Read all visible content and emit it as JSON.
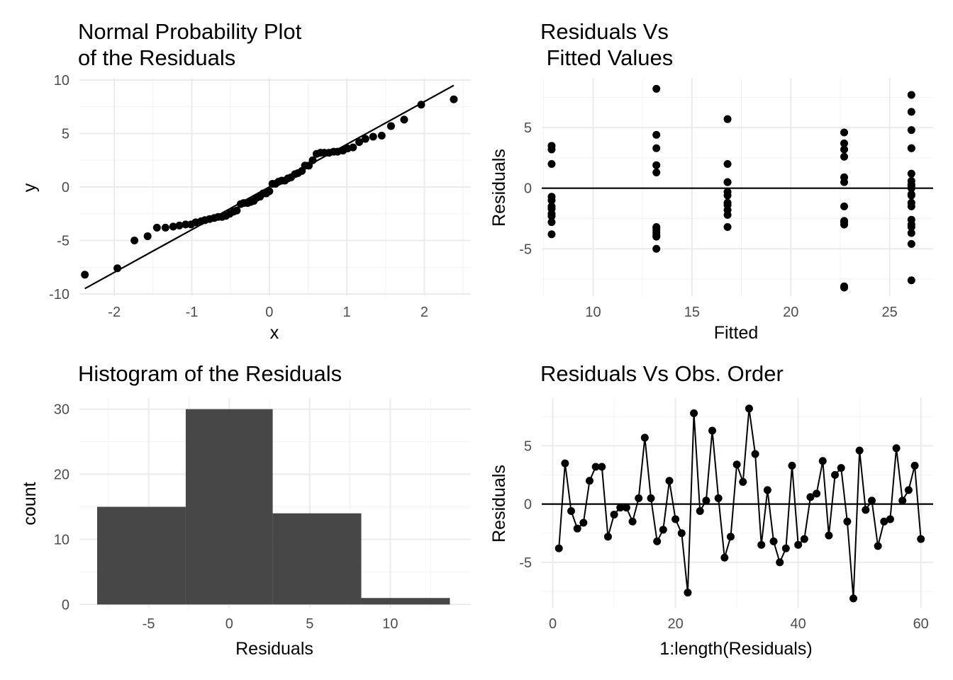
{
  "chart_data": [
    {
      "id": "qq",
      "type": "scatter",
      "title_lines": [
        "Normal Probability Plot",
        "of the Residuals"
      ],
      "xlabel": "x",
      "ylabel": "y",
      "xlim": [
        -2.45,
        2.6
      ],
      "ylim": [
        -10.2,
        10.2
      ],
      "xticks": [
        -2,
        -1,
        0,
        1,
        2
      ],
      "xtick_labels": [
        "-2",
        "-1",
        "0",
        "1",
        "2"
      ],
      "yticks": [
        -10,
        -5,
        0,
        5,
        10
      ],
      "ytick_labels": [
        "-10",
        "-5",
        "0",
        "5",
        "10"
      ],
      "reference_line": {
        "x": [
          -2.38,
          2.38
        ],
        "y": [
          -9.5,
          9.5
        ]
      },
      "x": [
        -2.38,
        -1.96,
        -1.74,
        -1.57,
        -1.45,
        -1.34,
        -1.24,
        -1.16,
        -1.08,
        -1.01,
        -0.95,
        -0.88,
        -0.83,
        -0.77,
        -0.71,
        -0.66,
        -0.61,
        -0.56,
        -0.51,
        -0.46,
        -0.42,
        -0.37,
        -0.33,
        -0.28,
        -0.24,
        -0.2,
        -0.16,
        -0.12,
        -0.08,
        -0.04,
        0.0,
        0.04,
        0.08,
        0.12,
        0.16,
        0.2,
        0.24,
        0.28,
        0.33,
        0.37,
        0.42,
        0.46,
        0.51,
        0.56,
        0.61,
        0.66,
        0.71,
        0.77,
        0.83,
        0.88,
        0.95,
        1.01,
        1.08,
        1.16,
        1.24,
        1.34,
        1.45,
        1.57,
        1.74,
        1.96,
        2.38
      ],
      "y": [
        -8.2,
        -7.6,
        -5.0,
        -4.6,
        -3.8,
        -3.8,
        -3.7,
        -3.6,
        -3.5,
        -3.5,
        -3.3,
        -3.2,
        -3.1,
        -3.0,
        -2.9,
        -2.8,
        -2.8,
        -2.7,
        -2.5,
        -2.3,
        -2.2,
        -1.6,
        -1.5,
        -1.5,
        -1.4,
        -1.3,
        -1.0,
        -0.9,
        -0.6,
        -0.6,
        -0.4,
        0.3,
        0.3,
        0.5,
        0.6,
        0.6,
        0.8,
        0.9,
        1.2,
        1.3,
        1.5,
        2.0,
        2.0,
        2.5,
        3.1,
        3.2,
        3.2,
        3.2,
        3.3,
        3.3,
        3.4,
        3.6,
        3.7,
        4.2,
        4.5,
        4.7,
        4.8,
        5.7,
        6.3,
        7.7,
        8.2
      ]
    },
    {
      "id": "fitted",
      "type": "scatter",
      "title_lines": [
        "Residuals Vs",
        " Fitted Values"
      ],
      "xlabel": "Fitted",
      "ylabel": "Residuals",
      "xlim": [
        7.4,
        27.2
      ],
      "ylim": [
        -8.9,
        9.1
      ],
      "xticks": [
        10,
        15,
        20,
        25
      ],
      "xtick_labels": [
        "10",
        "15",
        "20",
        "25"
      ],
      "yticks": [
        -5,
        0,
        5
      ],
      "ytick_labels": [
        "-5",
        "0",
        "5"
      ],
      "zero_line": 0,
      "x": [
        7.9,
        7.9,
        7.9,
        7.9,
        7.9,
        7.9,
        7.9,
        7.9,
        7.9,
        7.9,
        7.9,
        13.2,
        13.2,
        13.2,
        13.2,
        13.2,
        13.2,
        13.2,
        13.2,
        13.2,
        13.2,
        13.2,
        13.2,
        16.8,
        16.8,
        16.8,
        16.8,
        16.8,
        16.8,
        16.8,
        16.8,
        16.8,
        16.8,
        16.8,
        22.7,
        22.7,
        22.7,
        22.7,
        22.7,
        22.7,
        22.7,
        22.7,
        22.7,
        22.7,
        22.7,
        22.7,
        26.1,
        26.1,
        26.1,
        26.1,
        26.1,
        26.1,
        26.1,
        26.1,
        26.1,
        26.1,
        26.1,
        26.1,
        26.1,
        26.1,
        26.1,
        26.1,
        26.1,
        26.1,
        26.1,
        26.1
      ],
      "y": [
        3.5,
        3.2,
        2.0,
        -0.7,
        -1.0,
        -1.5,
        -1.7,
        -2.1,
        -2.3,
        -2.8,
        -3.8,
        8.2,
        4.4,
        3.3,
        1.9,
        1.3,
        -3.2,
        -3.3,
        -3.5,
        -3.7,
        -3.9,
        -4.0,
        -5.0,
        5.7,
        2.0,
        0.5,
        0.5,
        -0.3,
        -0.6,
        -1.2,
        -1.4,
        -1.8,
        -2.2,
        -3.2,
        4.6,
        3.7,
        3.2,
        2.6,
        0.9,
        0.5,
        -1.5,
        -2.7,
        -2.8,
        -3.0,
        -8.1,
        -8.2,
        7.7,
        6.3,
        4.8,
        3.3,
        3.3,
        1.2,
        0.6,
        0.3,
        0.2,
        -0.5,
        -0.6,
        -1.2,
        -1.5,
        -2.6,
        -3.0,
        -3.2,
        -3.7,
        -4.6,
        -7.6,
        0.0
      ],
      "x_note": "",
      "y_note": ""
    },
    {
      "id": "histogram",
      "type": "bar",
      "title_lines": [
        "Histogram of the Residuals"
      ],
      "xlabel": "Residuals",
      "ylabel": "count",
      "xlim": [
        -9.3,
        15.0
      ],
      "ylim": [
        -0.5,
        31.7
      ],
      "xticks": [
        -5,
        0,
        5,
        10
      ],
      "xtick_labels": [
        "-5",
        "0",
        "5",
        "10"
      ],
      "yticks": [
        0,
        10,
        20,
        30
      ],
      "ytick_labels": [
        "0",
        "10",
        "20",
        "30"
      ],
      "bins": [
        {
          "start": -8.2,
          "end": -2.7,
          "count": 15
        },
        {
          "start": -2.7,
          "end": 2.7,
          "count": 30
        },
        {
          "start": 2.7,
          "end": 8.2,
          "count": 14
        },
        {
          "start": 8.2,
          "end": 13.7,
          "count": 1
        }
      ],
      "bar_color": "#474747"
    },
    {
      "id": "order",
      "type": "line",
      "title_lines": [
        "Residuals Vs Obs. Order"
      ],
      "xlabel": "1:length(Residuals)",
      "ylabel": "Residuals",
      "xlim": [
        -1.8,
        62.0
      ],
      "ylim": [
        -8.9,
        9.1
      ],
      "xticks": [
        0,
        20,
        40,
        60
      ],
      "xtick_labels": [
        "0",
        "20",
        "40",
        "60"
      ],
      "yticks": [
        -5,
        0,
        5
      ],
      "ytick_labels": [
        "-5",
        "0",
        "5"
      ],
      "zero_line": 0,
      "x": [
        1,
        2,
        3,
        4,
        5,
        6,
        7,
        8,
        9,
        10,
        11,
        12,
        13,
        14,
        15,
        16,
        17,
        18,
        19,
        20,
        21,
        22,
        23,
        24,
        25,
        26,
        27,
        28,
        29,
        30,
        31,
        32,
        33,
        34,
        35,
        36,
        37,
        38,
        39,
        40,
        41,
        42,
        43,
        44,
        45,
        46,
        47,
        48,
        49,
        50,
        51,
        52,
        53,
        54,
        55,
        56,
        57,
        58,
        59,
        60
      ],
      "y": [
        -3.8,
        3.5,
        -0.6,
        -2.1,
        -1.6,
        2.0,
        3.2,
        3.2,
        -2.8,
        -0.9,
        -0.3,
        -0.3,
        -1.5,
        0.5,
        5.7,
        0.5,
        -3.2,
        -2.2,
        2.0,
        -1.3,
        -2.5,
        -7.6,
        7.8,
        -0.6,
        0.3,
        6.3,
        0.5,
        -4.6,
        -2.8,
        3.4,
        1.9,
        8.2,
        4.3,
        -3.5,
        1.2,
        -3.2,
        -5.0,
        -3.8,
        3.3,
        -3.5,
        -3.0,
        0.6,
        0.9,
        3.7,
        -2.7,
        2.5,
        3.1,
        -1.5,
        -8.1,
        4.6,
        -0.5,
        0.3,
        -3.6,
        -1.5,
        -1.3,
        4.8,
        0.3,
        1.2,
        3.3,
        -3.0
      ]
    }
  ]
}
